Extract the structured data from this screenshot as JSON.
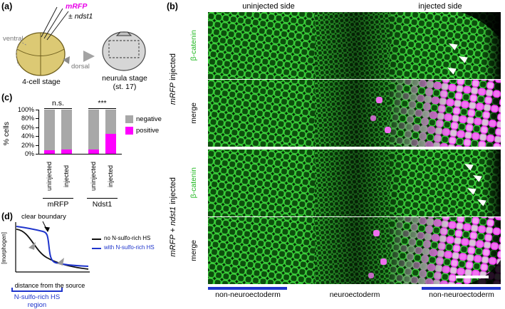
{
  "panels": {
    "a": {
      "label": "(a)",
      "mrfp": "mRFP",
      "plus_minus": "±",
      "ndst1": "ndst1",
      "ventral": "ventral",
      "dorsal": "dorsal",
      "stage4": "4-cell stage",
      "neurula1": "neurula stage",
      "neurula2": "(st. 17)"
    },
    "b": {
      "label": "(b)",
      "header_uninjected": "uninjected side",
      "header_injected": "injected side",
      "group1_gene": "mRFP",
      "group1_rest": " injected",
      "group2_gene1": "mRFP",
      "group2_plus": " + ",
      "group2_gene2": "ndst1",
      "group2_rest": " injected",
      "stain": "β-catenin",
      "merge": "merge",
      "region_left": "non-neuroectoderm",
      "region_mid": "neuroectoderm",
      "region_right": "non-neuroectoderm"
    },
    "c": {
      "label": "(c)"
    },
    "d": {
      "label": "(d)",
      "boundary": "clear boundary",
      "legend_no": "no N-sulfo-rich HS",
      "legend_with": "with N-sulfo-rich HS",
      "ylabel": "[morphogen]",
      "xlabel": "distance from the source",
      "region1": "N-sulfo-rich HS",
      "region2": "region",
      "curves": [
        {
          "name": "no N-sulfo-rich HS",
          "color": "#111111",
          "shape": "smooth exponential decay"
        },
        {
          "name": "with N-sulfo-rich HS",
          "color": "#1f35cc",
          "shape": "high plateau, sharp drop at boundary, low plateau"
        }
      ]
    }
  },
  "chart_data": {
    "type": "bar",
    "stacked": true,
    "ylabel": "% cells",
    "ylim": [
      0,
      100
    ],
    "yticks": [
      "100%",
      "80%",
      "60%",
      "40%",
      "20%",
      "0%"
    ],
    "categories": [
      "uninjected",
      "injected",
      "uninjected",
      "injected"
    ],
    "group_labels": [
      "mRFP",
      "Ndst1"
    ],
    "series": [
      {
        "name": "positive",
        "color": "#ff00ff",
        "values": [
          8,
          10,
          10,
          45
        ]
      },
      {
        "name": "negative",
        "color": "#a8a8a8",
        "values": [
          92,
          90,
          90,
          55
        ]
      }
    ],
    "significance": [
      "n.s.",
      "***"
    ],
    "legend": [
      "negative",
      "positive"
    ],
    "legend_position": "right",
    "grid": false
  },
  "colors": {
    "stain_green": "#1db81d",
    "mrfp_magenta": "#e800e8",
    "hs_blue": "#1f35cc",
    "negative_gray": "#a8a8a8",
    "positive_magenta": "#ff00ff"
  }
}
